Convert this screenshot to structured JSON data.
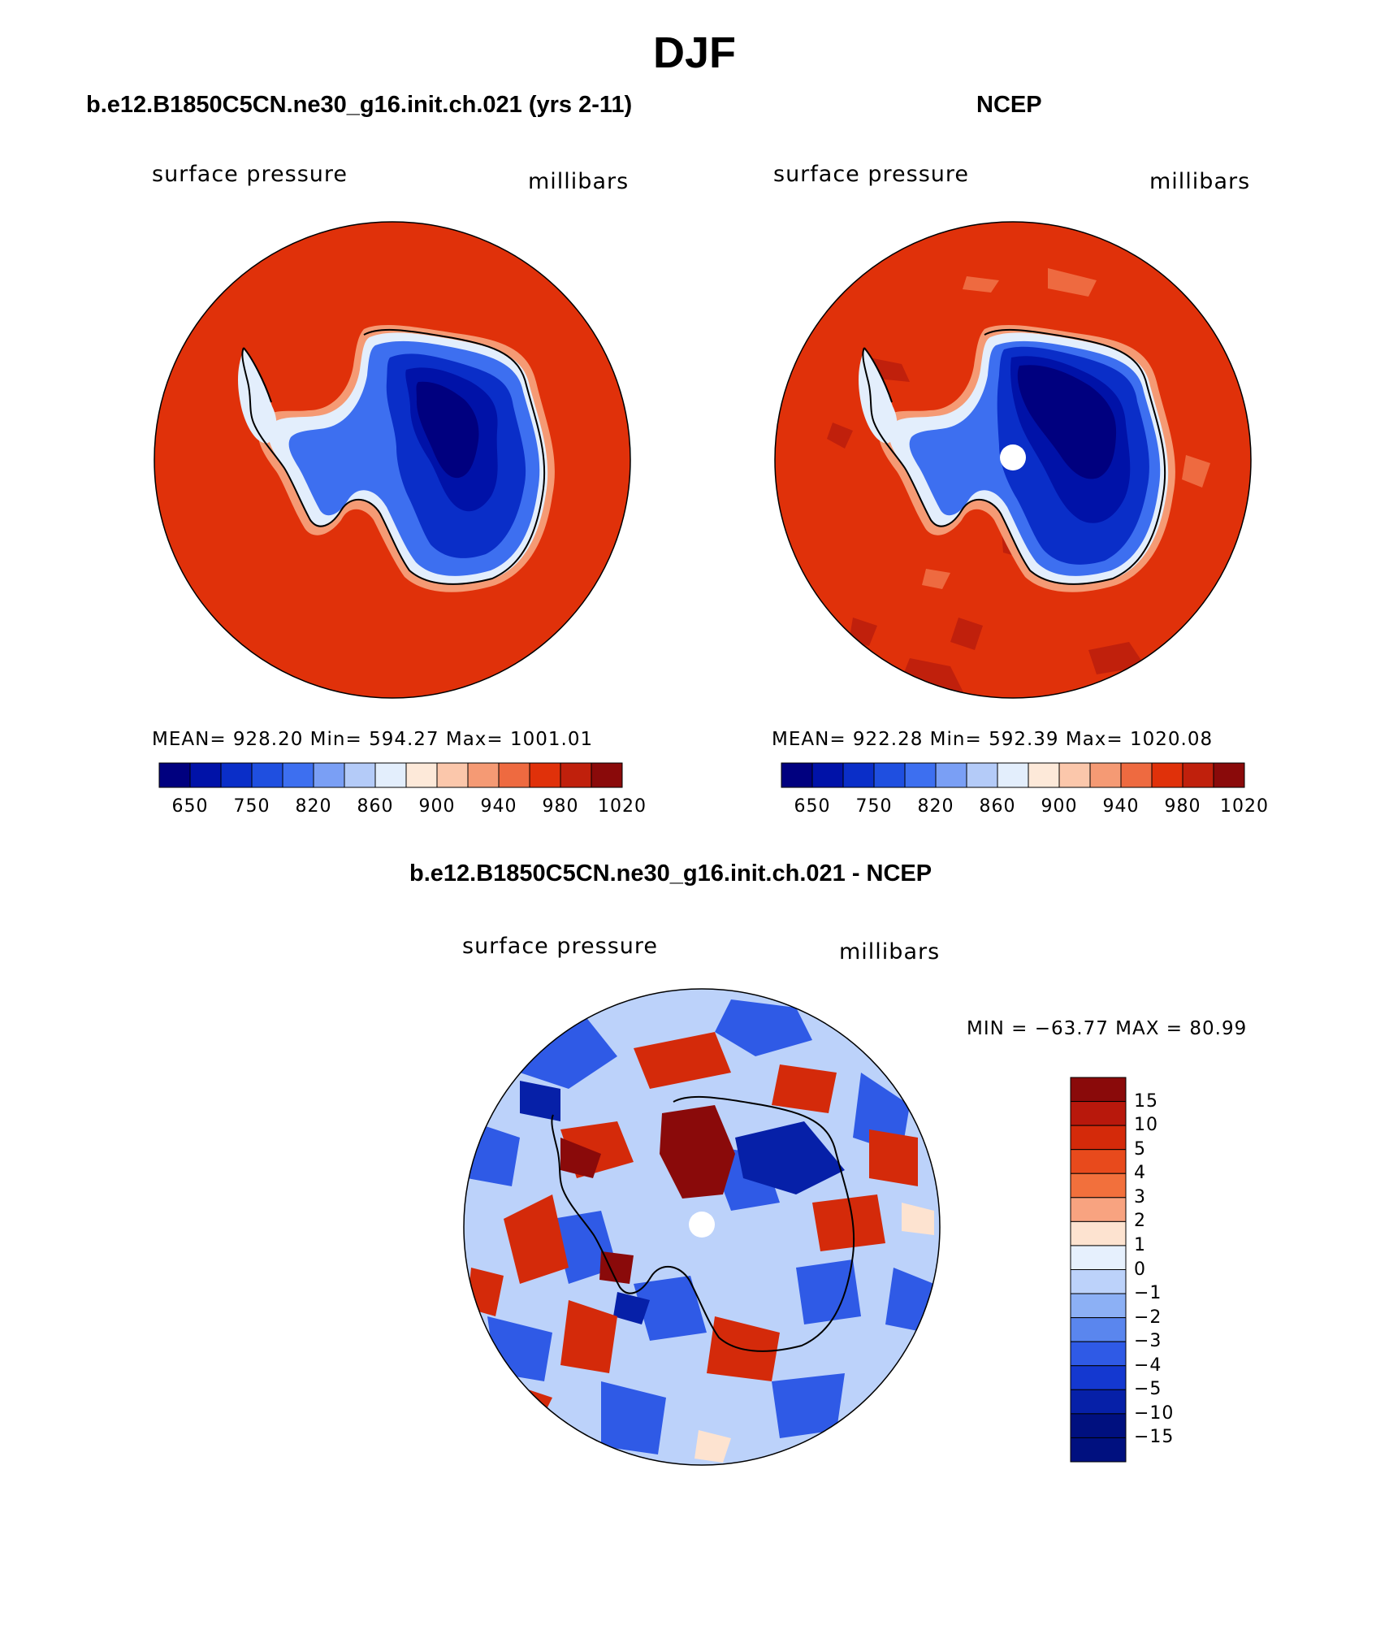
{
  "title": "DJF",
  "colors": {
    "ocean_model": "#e0310a",
    "ocean_obs": "#e0310a",
    "coast": "#000000"
  },
  "panels": [
    {
      "title": "b.e12.B1850C5CN.ne30_g16.init.ch.021 (yrs 2-11)",
      "left_label": "surface pressure",
      "right_label": "millibars",
      "stats": "MEAN= 928.20   Min= 594.27   Max= 1001.01",
      "colorbar": {
        "colors": [
          "#00007f",
          "#0012a8",
          "#0a2ec8",
          "#1f4fe0",
          "#3d6ff0",
          "#7a9ff5",
          "#b4cbf8",
          "#e3eefc",
          "#fde9d9",
          "#fbc7ab",
          "#f59a74",
          "#ee6a40",
          "#e0310a",
          "#c0200c",
          "#8a0a0a"
        ],
        "tick_labels": [
          "650",
          "750",
          "820",
          "860",
          "900",
          "940",
          "980",
          "1020"
        ]
      }
    },
    {
      "title": "NCEP",
      "left_label": "surface pressure",
      "right_label": "millibars",
      "stats": "MEAN= 922.28   Min= 592.39   Max= 1020.08",
      "colorbar": {
        "colors": [
          "#00007f",
          "#0012a8",
          "#0a2ec8",
          "#1f4fe0",
          "#3d6ff0",
          "#7a9ff5",
          "#b4cbf8",
          "#e3eefc",
          "#fde9d9",
          "#fbc7ab",
          "#f59a74",
          "#ee6a40",
          "#e0310a",
          "#c0200c",
          "#8a0a0a"
        ],
        "tick_labels": [
          "650",
          "750",
          "820",
          "860",
          "900",
          "940",
          "980",
          "1020"
        ]
      }
    },
    {
      "title": "b.e12.B1850C5CN.ne30_g16.init.ch.021 - NCEP",
      "left_label": "surface pressure",
      "right_label": "millibars",
      "stats": "MIN = −63.77 MAX =   80.99",
      "colorbar": {
        "colors": [
          "#8a0a0a",
          "#b8180c",
          "#d42a0a",
          "#e84a1c",
          "#f2703c",
          "#f8a380",
          "#fde3d0",
          "#e6f0fd",
          "#bcd2fa",
          "#8cb0f5",
          "#5a86ee",
          "#2f5ae6",
          "#1438d0",
          "#0620a8",
          "#00107f"
        ],
        "tick_labels": [
          "15",
          "10",
          "5",
          "4",
          "3",
          "2",
          "1",
          "0",
          "−1",
          "−2",
          "−3",
          "−4",
          "−5",
          "−10",
          "−15"
        ]
      }
    }
  ],
  "chart_data": [
    {
      "type": "heatmap",
      "title": "b.e12.B1850C5CN.ne30_g16.init.ch.021 (yrs 2-11)",
      "variable": "surface pressure",
      "units": "millibars",
      "projection": "south polar stereographic",
      "stats": {
        "mean": 928.2,
        "min": 594.27,
        "max": 1001.01
      },
      "levels": [
        650,
        750,
        820,
        860,
        900,
        940,
        980,
        1020
      ]
    },
    {
      "type": "heatmap",
      "title": "NCEP",
      "variable": "surface pressure",
      "units": "millibars",
      "projection": "south polar stereographic",
      "stats": {
        "mean": 922.28,
        "min": 592.39,
        "max": 1020.08
      },
      "levels": [
        650,
        750,
        820,
        860,
        900,
        940,
        980,
        1020
      ]
    },
    {
      "type": "heatmap",
      "title": "b.e12.B1850C5CN.ne30_g16.init.ch.021 - NCEP",
      "variable": "surface pressure",
      "units": "millibars",
      "projection": "south polar stereographic",
      "stats": {
        "min": -63.77,
        "max": 80.99
      },
      "levels": [
        -15,
        -10,
        -5,
        -4,
        -3,
        -2,
        -1,
        0,
        1,
        2,
        3,
        4,
        5,
        10,
        15
      ]
    }
  ]
}
